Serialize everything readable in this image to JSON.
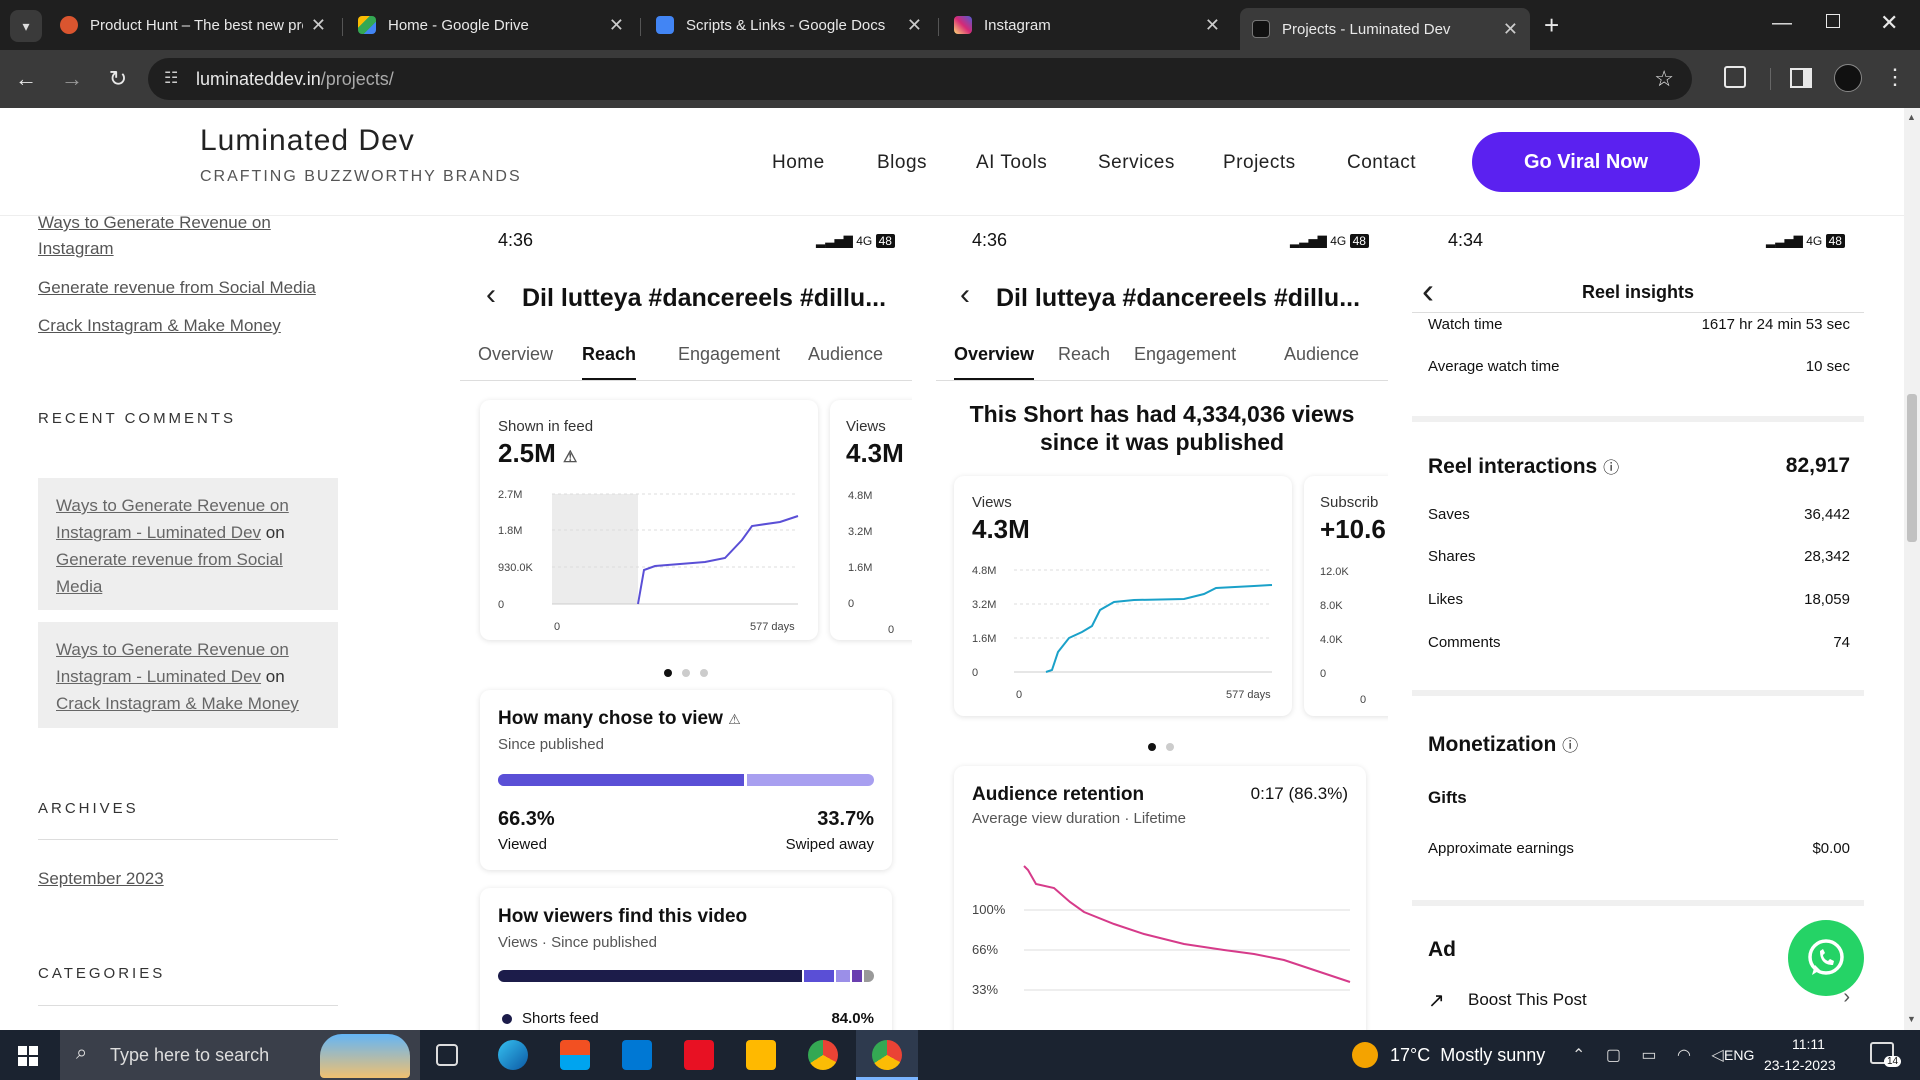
{
  "browser": {
    "tabs": [
      {
        "title": "Product Hunt – The best new products",
        "color": "#da552f"
      },
      {
        "title": "Home - Google Drive",
        "color": "#1fa463"
      },
      {
        "title": "Scripts & Links - Google Docs",
        "color": "#4285f4"
      },
      {
        "title": "Instagram",
        "color": "#d62976"
      },
      {
        "title": "Projects - Luminated Dev",
        "color": "#222222"
      }
    ],
    "url_host": "luminateddev.in",
    "url_path": "/projects/"
  },
  "site": {
    "logo": "Luminated Dev",
    "tagline": "CRAFTING BUZZWORTHY BRANDS",
    "menu": [
      "Home",
      "Blogs",
      "AI Tools",
      "Services",
      "Projects",
      "Contact"
    ],
    "cta": "Go Viral Now",
    "accent": "#5b21f0"
  },
  "sidebar": {
    "recent_posts": [
      "Ways to Generate Revenue on Instagram",
      "Generate revenue from Social Media",
      "Crack Instagram & Make Money"
    ],
    "recent_comments_heading": "RECENT COMMENTS",
    "comments": [
      {
        "author": "Ways to Generate Revenue on Instagram - Luminated Dev",
        "on": "on",
        "post": "Generate revenue from Social Media"
      },
      {
        "author": "Ways to Generate Revenue on Instagram - Luminated Dev",
        "on": "on",
        "post": "Crack Instagram & Make Money"
      }
    ],
    "archives_heading": "ARCHIVES",
    "archive": "September 2023",
    "categories_heading": "CATEGORIES"
  },
  "phone1": {
    "time": "4:36",
    "net": "4G",
    "battery": "48",
    "title": "Dil lutteya #dancereels #dillu...",
    "tabs": [
      "Overview",
      "Reach",
      "Engagement",
      "Audience"
    ],
    "card1": {
      "label": "Shown in feed",
      "value": "2.5M",
      "y_ticks": [
        "2.7M",
        "1.8M",
        "930.0K",
        "0"
      ],
      "x_start": "0",
      "x_end": "577 days"
    },
    "card2": {
      "label": "Views",
      "value": "4.3M",
      "y_ticks": [
        "4.8M",
        "3.2M",
        "1.6M",
        "0"
      ],
      "x_start": "0"
    },
    "view": {
      "heading": "How many chose to view",
      "sub": "Since published",
      "viewed_pct": "66.3%",
      "viewed": "Viewed",
      "swiped_pct": "33.7%",
      "swiped": "Swiped away",
      "viewed_frac": 0.663
    },
    "find": {
      "heading": "How viewers find this video",
      "sub": "Views · Since published",
      "first_source": "Shorts feed",
      "first_pct": "84.0%"
    }
  },
  "phone2": {
    "time": "4:36",
    "net": "4G",
    "battery": "48",
    "title": "Dil lutteya #dancereels #dillu...",
    "tabs": [
      "Overview",
      "Reach",
      "Engagement",
      "Audience"
    ],
    "headline": "This Short has had 4,334,036 views since it was published",
    "card1": {
      "label": "Views",
      "value": "4.3M",
      "y_ticks": [
        "4.8M",
        "3.2M",
        "1.6M",
        "0"
      ],
      "x_start": "0",
      "x_end": "577 days"
    },
    "card2": {
      "label": "Subscrib",
      "value": "+10.6",
      "y_ticks": [
        "12.0K",
        "8.0K",
        "4.0K",
        "0"
      ],
      "x_start": "0"
    },
    "retention": {
      "heading": "Audience retention",
      "sub": "Average view duration · Lifetime",
      "value": "0:17 (86.3%)",
      "y_ticks": [
        "100%",
        "66%",
        "33%"
      ]
    }
  },
  "phone3": {
    "time": "4:34",
    "net": "4G",
    "battery": "48",
    "title": "Reel insights",
    "watch_time_label": "Watch time",
    "watch_time": "1617 hr 24 min 53 sec",
    "avg_watch_label": "Average watch time",
    "avg_watch": "10 sec",
    "interactions_heading": "Reel interactions",
    "interactions_total": "82,917",
    "rows": [
      {
        "label": "Saves",
        "value": "36,442"
      },
      {
        "label": "Shares",
        "value": "28,342"
      },
      {
        "label": "Likes",
        "value": "18,059"
      },
      {
        "label": "Comments",
        "value": "74"
      }
    ],
    "monetization_heading": "Monetization",
    "gifts": "Gifts",
    "earnings_label": "Approximate earnings",
    "earnings": "$0.00",
    "ad_heading": "Ad",
    "boost": "Boost This Post"
  },
  "taskbar": {
    "search": "Type here to search",
    "weather": "17°C  Mostly sunny",
    "lang": "ENG",
    "time": "11:11",
    "date": "23-12-2023",
    "notif": "14"
  },
  "chart_data": [
    {
      "type": "line",
      "label": "Shown in feed",
      "y_ticks": [
        "2.7M",
        "1.8M",
        "930.0K",
        "0"
      ],
      "x_ticks": [
        "0",
        "577 days"
      ]
    },
    {
      "type": "line",
      "label": "Views",
      "y_ticks": [
        "4.8M",
        "3.2M",
        "1.6M",
        "0"
      ],
      "x_ticks": [
        "0",
        "577 days"
      ]
    },
    {
      "type": "line",
      "label": "Audience retention",
      "y_ticks": [
        "100%",
        "66%",
        "33%"
      ]
    }
  ]
}
